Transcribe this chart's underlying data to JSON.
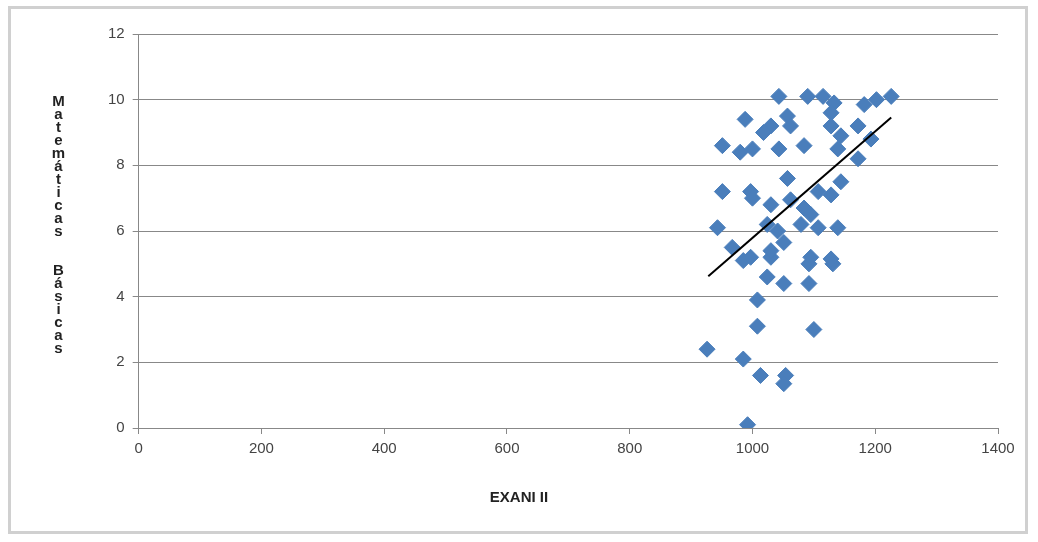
{
  "chart_data": {
    "type": "scatter",
    "xlabel": "EXANI II",
    "ylabel": "Matemáticas  Básicas",
    "xlim": [
      0,
      1400
    ],
    "xticks": [
      0,
      200,
      400,
      600,
      800,
      1000,
      1200,
      1400
    ],
    "ylim": [
      0,
      12
    ],
    "yticks": [
      0,
      2,
      4,
      6,
      8,
      10,
      12
    ],
    "grid": "y",
    "legend": false,
    "marker": "diamond",
    "series": [
      {
        "type": "scatter",
        "color": "#4a7ebb",
        "x": [
          985,
          1030,
          1024,
          1051,
          1092,
          1131,
          1092,
          1008,
          1008,
          1100,
          926,
          985,
          1013,
          1054,
          1051,
          992,
          1043,
          1090,
          1115,
          1133,
          1182,
          1202,
          1226,
          988,
          1030,
          1057,
          1062,
          1128,
          1128,
          1144,
          1172,
          1193,
          951,
          980,
          1000,
          1043,
          1084,
          1018,
          1139,
          1172,
          1057,
          951,
          997,
          1000,
          1144,
          1128,
          1107,
          1030,
          1062,
          1084,
          1095,
          943,
          1024,
          1079,
          1107,
          1139,
          967,
          1041,
          1051,
          997,
          1030,
          1095,
          1128
        ],
        "values": [
          5.1,
          5.2,
          4.6,
          4.4,
          5.0,
          5.0,
          4.4,
          3.9,
          3.1,
          3.0,
          2.4,
          2.1,
          1.6,
          1.6,
          1.35,
          0.1,
          10.1,
          10.1,
          10.1,
          9.9,
          9.85,
          10.0,
          10.1,
          9.4,
          9.2,
          9.5,
          9.2,
          9.6,
          9.2,
          8.9,
          9.2,
          8.8,
          8.6,
          8.4,
          8.5,
          8.5,
          8.6,
          9.0,
          8.5,
          8.2,
          7.6,
          7.2,
          7.2,
          7.0,
          7.5,
          7.1,
          7.2,
          6.8,
          6.95,
          6.7,
          6.5,
          6.1,
          6.2,
          6.2,
          6.1,
          6.1,
          5.5,
          6.0,
          5.65,
          5.2,
          5.4,
          5.2,
          5.15
        ]
      },
      {
        "type": "line",
        "marker": "none",
        "color": "#000000",
        "x": [
          928,
          1226
        ],
        "values": [
          4.62,
          9.46
        ]
      }
    ]
  }
}
